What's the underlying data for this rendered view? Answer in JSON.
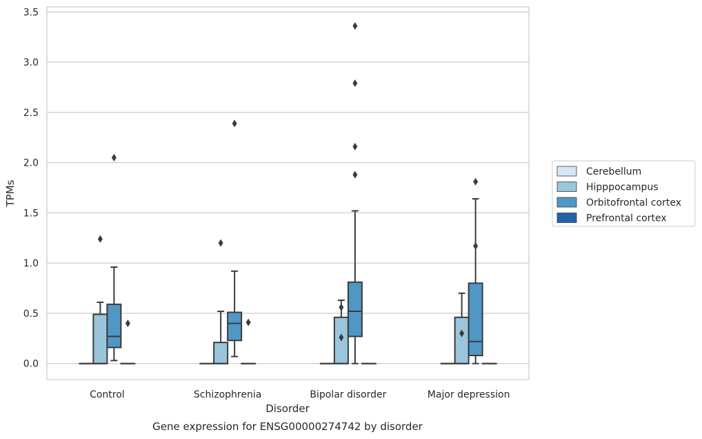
{
  "chart_data": {
    "type": "boxplot",
    "title": "",
    "caption": "Gene expression for ENSG00000274742 by disorder",
    "xlabel": "Disorder",
    "ylabel": "TPMs",
    "ylim": [
      -0.16,
      3.55
    ],
    "yticks": [
      0.0,
      0.5,
      1.0,
      1.5,
      2.0,
      2.5,
      3.0,
      3.5
    ],
    "ytick_labels": [
      "0.0",
      "0.5",
      "1.0",
      "1.5",
      "2.0",
      "2.5",
      "3.0",
      "3.5"
    ],
    "categories": [
      "Control",
      "Schizophrenia",
      "Bipolar disorder",
      "Major depression"
    ],
    "grid": "horizontal",
    "legend_position": "right",
    "series": [
      {
        "name": "Cerebellum",
        "color": "#d6e6f4",
        "boxes": [
          {
            "q1": 0,
            "median": 0,
            "q3": 0,
            "whislo": 0,
            "whishi": 0,
            "fliers": []
          },
          {
            "q1": 0,
            "median": 0,
            "q3": 0,
            "whislo": 0,
            "whishi": 0,
            "fliers": []
          },
          {
            "q1": 0,
            "median": 0,
            "q3": 0,
            "whislo": 0,
            "whishi": 0,
            "fliers": []
          },
          {
            "q1": 0,
            "median": 0,
            "q3": 0,
            "whislo": 0,
            "whishi": 0,
            "fliers": []
          }
        ]
      },
      {
        "name": "Hipppocampus",
        "color": "#9ac5dc",
        "boxes": [
          {
            "q1": 0,
            "median": 0,
            "q3": 0.49,
            "whislo": 0,
            "whishi": 0.61,
            "fliers": [
              1.24
            ]
          },
          {
            "q1": 0,
            "median": 0,
            "q3": 0.21,
            "whislo": 0,
            "whishi": 0.52,
            "fliers": [
              1.2
            ]
          },
          {
            "q1": 0,
            "median": 0,
            "q3": 0.46,
            "whislo": 0,
            "whishi": 0.63,
            "fliers": [
              0.26,
              0.56
            ]
          },
          {
            "q1": 0,
            "median": 0,
            "q3": 0.46,
            "whislo": 0,
            "whishi": 0.7,
            "fliers": [
              0.3
            ]
          }
        ]
      },
      {
        "name": "Orbitofrontal cortex",
        "color": "#5097c5",
        "boxes": [
          {
            "q1": 0.16,
            "median": 0.27,
            "q3": 0.59,
            "whislo": 0.03,
            "whishi": 0.96,
            "fliers": [
              2.05
            ]
          },
          {
            "q1": 0.23,
            "median": 0.4,
            "q3": 0.51,
            "whislo": 0.07,
            "whishi": 0.92,
            "fliers": [
              2.39
            ]
          },
          {
            "q1": 0.27,
            "median": 0.52,
            "q3": 0.81,
            "whislo": 0,
            "whishi": 1.52,
            "fliers": [
              1.88,
              2.16,
              2.79,
              3.36
            ]
          },
          {
            "q1": 0.08,
            "median": 0.22,
            "q3": 0.8,
            "whislo": 0,
            "whishi": 1.64,
            "fliers": [
              1.17,
              1.81
            ]
          }
        ]
      },
      {
        "name": "Prefrontal cortex",
        "color": "#2563a8",
        "boxes": [
          {
            "q1": 0,
            "median": 0,
            "q3": 0,
            "whislo": 0,
            "whishi": 0,
            "fliers": [
              0.4
            ]
          },
          {
            "q1": 0,
            "median": 0,
            "q3": 0,
            "whislo": 0,
            "whishi": 0,
            "fliers": [
              0.41
            ]
          },
          {
            "q1": 0,
            "median": 0,
            "q3": 0,
            "whislo": 0,
            "whishi": 0,
            "fliers": []
          },
          {
            "q1": 0,
            "median": 0,
            "q3": 0,
            "whislo": 0,
            "whishi": 0,
            "fliers": []
          }
        ]
      }
    ]
  }
}
